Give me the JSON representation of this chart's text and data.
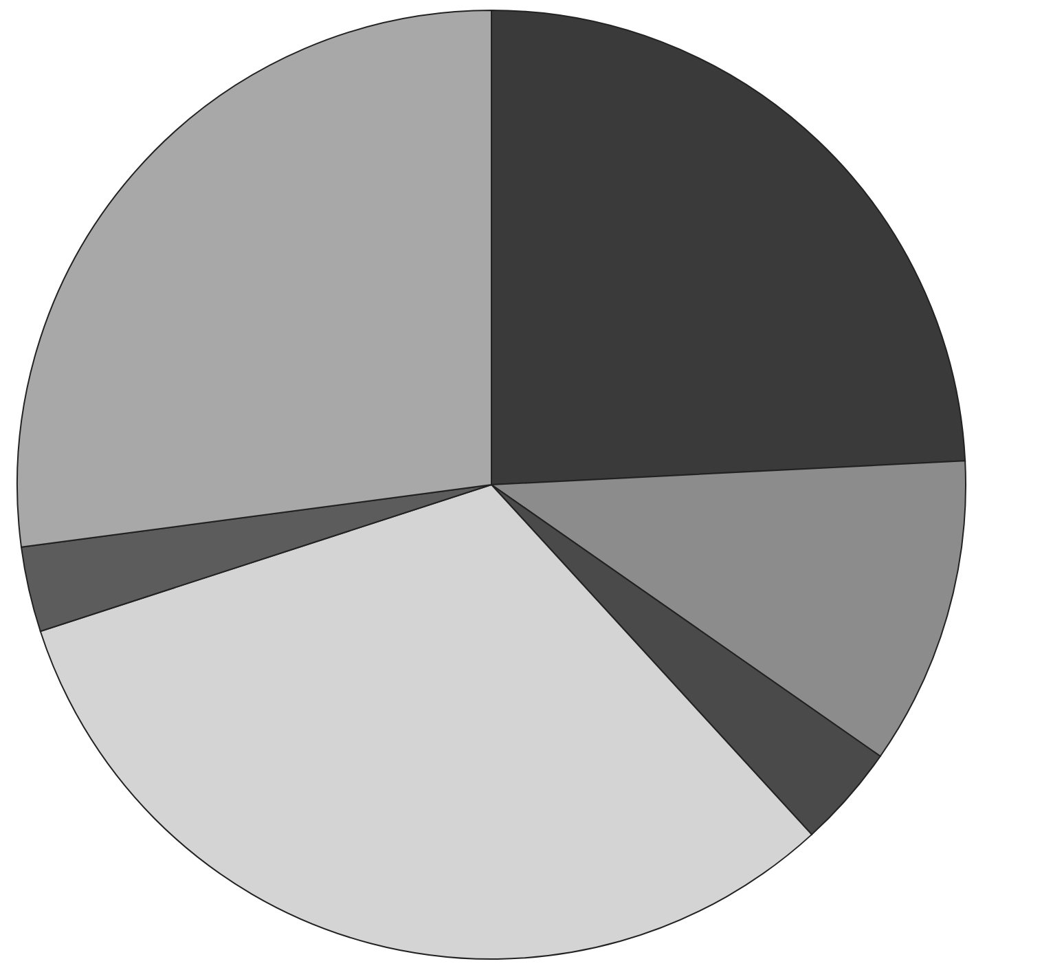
{
  "chart_data": {
    "type": "pie",
    "categories": [
      null,
      null,
      null,
      null,
      null,
      null
    ],
    "values": [
      24.2,
      10.5,
      3.5,
      31.8,
      2.9,
      27.1
    ],
    "colors": [
      "#3a3a3a",
      "#8c8c8c",
      "#4a4a4a",
      "#d4d4d4",
      "#5c5c5c",
      "#a8a8a8"
    ]
  }
}
